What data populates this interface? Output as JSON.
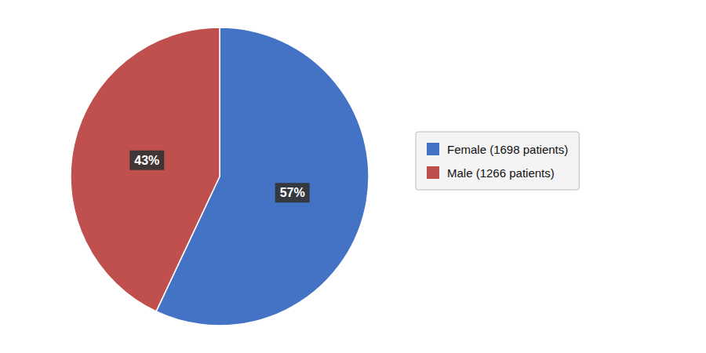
{
  "chart_data": {
    "type": "pie",
    "categories": [
      "Female (1698 patients)",
      "Male (1266 patients)"
    ],
    "values": [
      57,
      43
    ],
    "value_labels": [
      "57%",
      "43%"
    ],
    "colors": [
      "#4472C4",
      "#C0504D"
    ],
    "data_labels": true,
    "legend": "right"
  }
}
